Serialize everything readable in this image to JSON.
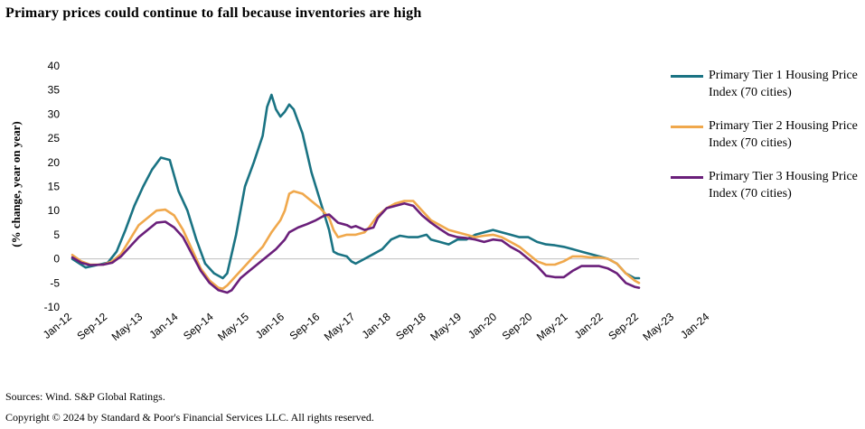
{
  "title": "Primary prices could continue to fall because inventories are high",
  "footer": {
    "sources": "Sources: Wind. S&P Global Ratings.",
    "copyright": "Copyright © 2024 by Standard & Poor's Financial Services LLC. All rights reserved."
  },
  "chart_data": {
    "type": "line",
    "title": "",
    "xlabel": "",
    "ylabel": "(% change, year on year)",
    "ylim": [
      -10,
      40
    ],
    "yticks": [
      -10,
      -5,
      0,
      5,
      10,
      15,
      20,
      25,
      30,
      35,
      40
    ],
    "xticks": [
      "Jan-12",
      "Sep-12",
      "May-13",
      "Jan-14",
      "Sep-14",
      "May-15",
      "Jan-16",
      "Sep-16",
      "May-17",
      "Jan-18",
      "Sep-18",
      "May-19",
      "Jan-20",
      "Sep-20",
      "May-21",
      "Jan-22",
      "Sep-22",
      "May-23",
      "Jan-24"
    ],
    "x_start": "Jan-12",
    "x_end": "Jun-24",
    "grid": false,
    "legend_position": "right",
    "series": [
      {
        "name": "Primary Tier 1 Housing Price Index (70 cities)",
        "color": "#1a7383",
        "points": [
          [
            0,
            0
          ],
          [
            3,
            -1.8
          ],
          [
            6,
            -1.2
          ],
          [
            8,
            -0.8
          ],
          [
            10,
            1.5
          ],
          [
            12,
            6
          ],
          [
            14,
            11
          ],
          [
            16,
            15
          ],
          [
            18,
            18.5
          ],
          [
            20,
            21
          ],
          [
            22,
            20.5
          ],
          [
            24,
            14
          ],
          [
            26,
            10
          ],
          [
            28,
            4
          ],
          [
            30,
            -1
          ],
          [
            32,
            -3
          ],
          [
            34,
            -4
          ],
          [
            35,
            -3
          ],
          [
            37,
            5
          ],
          [
            39,
            15
          ],
          [
            41,
            20
          ],
          [
            43,
            25.5
          ],
          [
            44,
            31.5
          ],
          [
            45,
            34
          ],
          [
            46,
            31
          ],
          [
            47,
            29.5
          ],
          [
            48,
            30.5
          ],
          [
            49,
            32
          ],
          [
            50,
            31
          ],
          [
            52,
            26
          ],
          [
            54,
            18
          ],
          [
            56,
            12
          ],
          [
            58,
            6
          ],
          [
            59,
            1.5
          ],
          [
            60,
            1
          ],
          [
            62,
            0.5
          ],
          [
            63,
            -0.5
          ],
          [
            64,
            -1
          ],
          [
            66,
            0
          ],
          [
            68,
            1
          ],
          [
            70,
            2
          ],
          [
            72,
            4
          ],
          [
            74,
            4.8
          ],
          [
            76,
            4.5
          ],
          [
            78,
            4.5
          ],
          [
            80,
            5
          ],
          [
            81,
            4
          ],
          [
            83,
            3.5
          ],
          [
            85,
            3
          ],
          [
            87,
            4
          ],
          [
            89,
            4
          ],
          [
            91,
            5
          ],
          [
            93,
            5.5
          ],
          [
            95,
            6
          ],
          [
            97,
            5.5
          ],
          [
            99,
            5
          ],
          [
            101,
            4.5
          ],
          [
            103,
            4.5
          ],
          [
            105,
            3.5
          ],
          [
            107,
            3
          ],
          [
            109,
            2.8
          ],
          [
            111,
            2.5
          ],
          [
            113,
            2
          ],
          [
            115,
            1.5
          ],
          [
            117,
            1
          ],
          [
            119,
            0.5
          ],
          [
            121,
            0
          ],
          [
            123,
            -1
          ],
          [
            125,
            -3
          ],
          [
            127,
            -4
          ],
          [
            128,
            -4
          ]
        ]
      },
      {
        "name": "Primary Tier 2 Housing Price Index (70 cities)",
        "color": "#f0a84c",
        "points": [
          [
            0,
            0.8
          ],
          [
            2,
            -0.5
          ],
          [
            4,
            -1.2
          ],
          [
            7,
            -1.2
          ],
          [
            9,
            -0.5
          ],
          [
            11,
            1
          ],
          [
            13,
            4
          ],
          [
            15,
            7
          ],
          [
            17,
            8.5
          ],
          [
            19,
            10
          ],
          [
            21,
            10.2
          ],
          [
            23,
            9
          ],
          [
            25,
            6
          ],
          [
            27,
            2
          ],
          [
            29,
            -2
          ],
          [
            31,
            -4.5
          ],
          [
            33,
            -6
          ],
          [
            34,
            -6.2
          ],
          [
            35,
            -5.5
          ],
          [
            37,
            -3.5
          ],
          [
            39,
            -1.5
          ],
          [
            41,
            0.5
          ],
          [
            43,
            2.5
          ],
          [
            45,
            5.5
          ],
          [
            47,
            8
          ],
          [
            48,
            10
          ],
          [
            49,
            13.5
          ],
          [
            50,
            14
          ],
          [
            52,
            13.5
          ],
          [
            54,
            12
          ],
          [
            56,
            10.5
          ],
          [
            58,
            8.5
          ],
          [
            59,
            6
          ],
          [
            60,
            4.5
          ],
          [
            62,
            5
          ],
          [
            64,
            5
          ],
          [
            66,
            5.5
          ],
          [
            67,
            6.5
          ],
          [
            69,
            9
          ],
          [
            71,
            10.5
          ],
          [
            73,
            11.5
          ],
          [
            75,
            12
          ],
          [
            77,
            12
          ],
          [
            79,
            10
          ],
          [
            81,
            8
          ],
          [
            83,
            7
          ],
          [
            85,
            6
          ],
          [
            87,
            5.5
          ],
          [
            89,
            5
          ],
          [
            91,
            4.5
          ],
          [
            93,
            4.8
          ],
          [
            95,
            5
          ],
          [
            97,
            4.5
          ],
          [
            99,
            3.5
          ],
          [
            101,
            2.5
          ],
          [
            103,
            1
          ],
          [
            105,
            -0.5
          ],
          [
            107,
            -1.2
          ],
          [
            109,
            -1.2
          ],
          [
            111,
            -0.5
          ],
          [
            113,
            0.5
          ],
          [
            115,
            0.5
          ],
          [
            117,
            0.3
          ],
          [
            119,
            0.3
          ],
          [
            121,
            0
          ],
          [
            123,
            -1
          ],
          [
            125,
            -3
          ],
          [
            127,
            -4.5
          ],
          [
            128,
            -5
          ]
        ]
      },
      {
        "name": "Primary Tier 3 Housing Price Index (70 cities)",
        "color": "#6a1f7a",
        "points": [
          [
            0,
            0.3
          ],
          [
            2,
            -0.8
          ],
          [
            4,
            -1.3
          ],
          [
            7,
            -1.2
          ],
          [
            9,
            -0.8
          ],
          [
            11,
            0.5
          ],
          [
            13,
            2.5
          ],
          [
            15,
            4.5
          ],
          [
            17,
            6
          ],
          [
            19,
            7.5
          ],
          [
            21,
            7.7
          ],
          [
            23,
            6.5
          ],
          [
            25,
            4.5
          ],
          [
            27,
            1
          ],
          [
            29,
            -2.5
          ],
          [
            31,
            -5
          ],
          [
            33,
            -6.5
          ],
          [
            35,
            -7
          ],
          [
            36,
            -6.5
          ],
          [
            38,
            -4
          ],
          [
            40,
            -2.5
          ],
          [
            42,
            -1
          ],
          [
            44,
            0.5
          ],
          [
            46,
            2
          ],
          [
            48,
            4
          ],
          [
            49,
            5.5
          ],
          [
            51,
            6.5
          ],
          [
            53,
            7.2
          ],
          [
            55,
            8
          ],
          [
            57,
            9
          ],
          [
            58,
            9.2
          ],
          [
            60,
            7.5
          ],
          [
            62,
            7
          ],
          [
            63,
            6.5
          ],
          [
            64,
            6.8
          ],
          [
            66,
            6
          ],
          [
            68,
            6.5
          ],
          [
            69,
            8.5
          ],
          [
            71,
            10.5
          ],
          [
            73,
            11
          ],
          [
            75,
            11.5
          ],
          [
            77,
            11
          ],
          [
            79,
            9
          ],
          [
            81,
            7.5
          ],
          [
            83,
            6.2
          ],
          [
            85,
            5
          ],
          [
            87,
            4.5
          ],
          [
            89,
            4.3
          ],
          [
            91,
            4
          ],
          [
            93,
            3.5
          ],
          [
            95,
            4
          ],
          [
            97,
            3.8
          ],
          [
            99,
            2.5
          ],
          [
            101,
            1.5
          ],
          [
            103,
            0
          ],
          [
            105,
            -1.5
          ],
          [
            107,
            -3.5
          ],
          [
            109,
            -3.8
          ],
          [
            111,
            -3.8
          ],
          [
            113,
            -2.5
          ],
          [
            115,
            -1.5
          ],
          [
            117,
            -1.5
          ],
          [
            119,
            -1.5
          ],
          [
            121,
            -2
          ],
          [
            123,
            -3
          ],
          [
            125,
            -5
          ],
          [
            127,
            -5.8
          ],
          [
            128,
            -6
          ]
        ]
      }
    ]
  }
}
